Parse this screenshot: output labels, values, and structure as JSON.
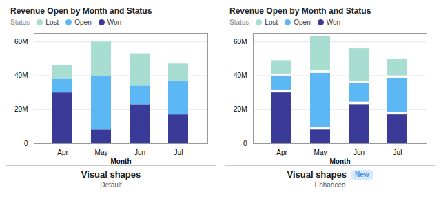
{
  "chart_data": [
    {
      "type": "bar",
      "title": "Revenue Open by Month and Status",
      "stacked": true,
      "grid": true,
      "xlabel": "Month",
      "legend_title": "Status",
      "categories": [
        "Apr",
        "May",
        "Jun",
        "Jul"
      ],
      "series": [
        {
          "name": "Lost",
          "color": "#a8ddd1",
          "values": [
            8,
            20,
            19,
            10
          ]
        },
        {
          "name": "Open",
          "color": "#5bb8f5",
          "values": [
            8,
            32,
            11,
            20
          ]
        },
        {
          "name": "Won",
          "color": "#3a3a99",
          "values": [
            30,
            8,
            23,
            17
          ]
        }
      ],
      "ylim": [
        0,
        65
      ],
      "yticks": [
        0,
        {
          "value": 20,
          "label": "20M"
        },
        {
          "value": 40,
          "label": "40M"
        },
        {
          "value": 60,
          "label": "60M"
        }
      ],
      "annotations": [
        "Visual shapes",
        "Default"
      ]
    },
    {
      "type": "bar",
      "title": "Revenue Open by Month and Status",
      "stacked": true,
      "grid": true,
      "xlabel": "Month",
      "legend_title": "Status",
      "categories": [
        "Apr",
        "May",
        "Jun",
        "Jul"
      ],
      "series": [
        {
          "name": "Lost",
          "color": "#a8ddd1",
          "values": [
            8,
            20,
            19,
            10
          ]
        },
        {
          "name": "Open",
          "color": "#5bb8f5",
          "values": [
            8,
            32,
            11,
            20
          ]
        },
        {
          "name": "Won",
          "color": "#3a3a99",
          "values": [
            30,
            8,
            23,
            17
          ]
        }
      ],
      "segment_gap": 1.5,
      "ylim": [
        0,
        65
      ],
      "yticks": [
        0,
        {
          "value": 20,
          "label": "20M"
        },
        {
          "value": 40,
          "label": "40M"
        },
        {
          "value": 60,
          "label": "60M"
        }
      ],
      "annotations": [
        "Visual shapes",
        "Enhanced",
        "New"
      ]
    }
  ]
}
